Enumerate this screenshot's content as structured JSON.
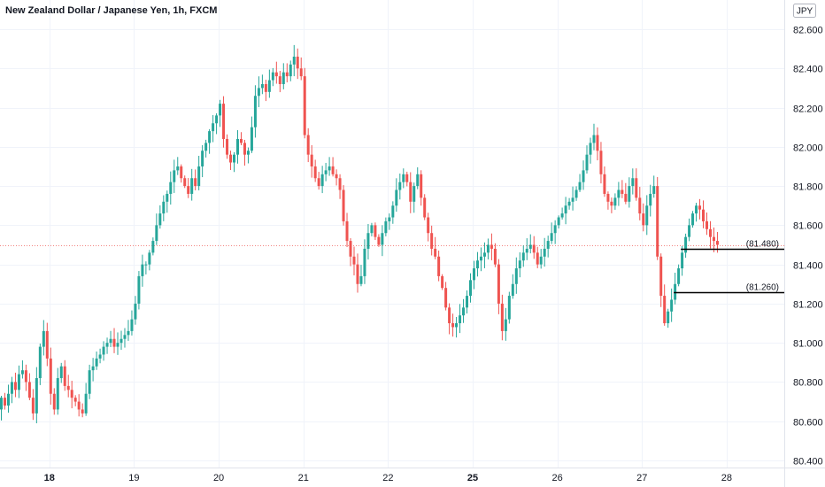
{
  "chart_data": {
    "type": "candlestick",
    "title": "New Zealand Dollar / Japanese Yen, 1h, FXCM",
    "currency": "JPY",
    "ylim": [
      80.38,
      82.7
    ],
    "yticks": [
      80.4,
      80.6,
      80.8,
      81.0,
      81.2,
      81.4,
      81.6,
      81.8,
      82.0,
      82.2,
      82.4,
      82.6
    ],
    "ytick_labels": [
      "80.400",
      "80.600",
      "80.800",
      "81.000",
      "81.200",
      "81.400",
      "81.600",
      "81.800",
      "82.000",
      "82.200",
      "82.400",
      "82.600"
    ],
    "xticks": [
      {
        "label": "18",
        "bar": 14,
        "bold": true
      },
      {
        "label": "19",
        "bar": 38,
        "bold": false
      },
      {
        "label": "20",
        "bar": 62,
        "bold": false
      },
      {
        "label": "21",
        "bar": 86,
        "bold": false
      },
      {
        "label": "22",
        "bar": 110,
        "bold": false
      },
      {
        "label": "25",
        "bar": 134,
        "bold": true
      },
      {
        "label": "26",
        "bar": 158,
        "bold": false
      },
      {
        "label": "27",
        "bar": 182,
        "bold": false
      },
      {
        "label": "28",
        "bar": 206,
        "bold": false
      }
    ],
    "last_price": 81.5,
    "levels": [
      {
        "label": "(81.480)",
        "value": 81.48,
        "from_bar": 193
      },
      {
        "label": "(81.260)",
        "value": 81.26,
        "from_bar": 191
      }
    ],
    "colors": {
      "up": "#26a69a",
      "down": "#ef5350",
      "grid": "#f0f3fa",
      "price_line": "#ef5350",
      "level": "#000000"
    },
    "closes": [
      80.72,
      80.68,
      80.74,
      80.8,
      80.76,
      80.84,
      80.86,
      80.8,
      80.72,
      80.64,
      80.82,
      80.98,
      81.06,
      80.92,
      80.74,
      80.66,
      80.82,
      80.88,
      80.78,
      80.76,
      80.72,
      80.7,
      80.66,
      80.64,
      80.74,
      80.86,
      80.88,
      80.92,
      80.94,
      80.98,
      81.0,
      81.02,
      80.98,
      81.0,
      81.02,
      81.04,
      81.06,
      81.12,
      81.2,
      81.34,
      81.4,
      81.4,
      81.46,
      81.52,
      81.6,
      81.66,
      81.72,
      81.76,
      81.82,
      81.88,
      81.9,
      81.84,
      81.8,
      81.76,
      81.84,
      81.8,
      81.9,
      81.98,
      82.02,
      82.08,
      82.12,
      82.16,
      82.22,
      82.04,
      81.96,
      81.92,
      81.96,
      82.04,
      82.02,
      81.96,
      81.98,
      82.1,
      82.26,
      82.3,
      82.32,
      82.28,
      82.34,
      82.38,
      82.36,
      82.32,
      82.38,
      82.36,
      82.42,
      82.46,
      82.4,
      82.36,
      82.06,
      81.96,
      81.9,
      81.84,
      81.8,
      81.86,
      81.88,
      81.9,
      81.86,
      81.84,
      81.78,
      81.62,
      81.52,
      81.44,
      81.4,
      81.3,
      81.34,
      81.48,
      81.56,
      81.6,
      81.54,
      81.5,
      81.56,
      81.62,
      81.64,
      81.7,
      81.78,
      81.82,
      81.86,
      81.82,
      81.72,
      81.8,
      81.86,
      81.74,
      81.64,
      81.56,
      81.48,
      81.44,
      81.34,
      81.28,
      81.18,
      81.1,
      81.08,
      81.1,
      81.14,
      81.18,
      81.24,
      81.32,
      81.38,
      81.42,
      81.44,
      81.46,
      81.5,
      81.48,
      81.4,
      81.2,
      81.06,
      81.12,
      81.24,
      81.3,
      81.38,
      81.42,
      81.46,
      81.48,
      81.5,
      81.46,
      81.4,
      81.44,
      81.48,
      81.52,
      81.56,
      81.6,
      81.64,
      81.66,
      81.7,
      81.72,
      81.74,
      81.78,
      81.82,
      81.88,
      81.96,
      82.02,
      82.06,
      81.98,
      81.86,
      81.76,
      81.72,
      81.7,
      81.74,
      81.78,
      81.76,
      81.72,
      81.8,
      81.84,
      81.74,
      81.66,
      81.6,
      81.7,
      81.76,
      81.8,
      81.44,
      81.24,
      81.1,
      81.16,
      81.22,
      81.3,
      81.38,
      81.46,
      81.54,
      81.6,
      81.66,
      81.7,
      81.68,
      81.62,
      81.58,
      81.54,
      81.52,
      81.5
    ]
  }
}
